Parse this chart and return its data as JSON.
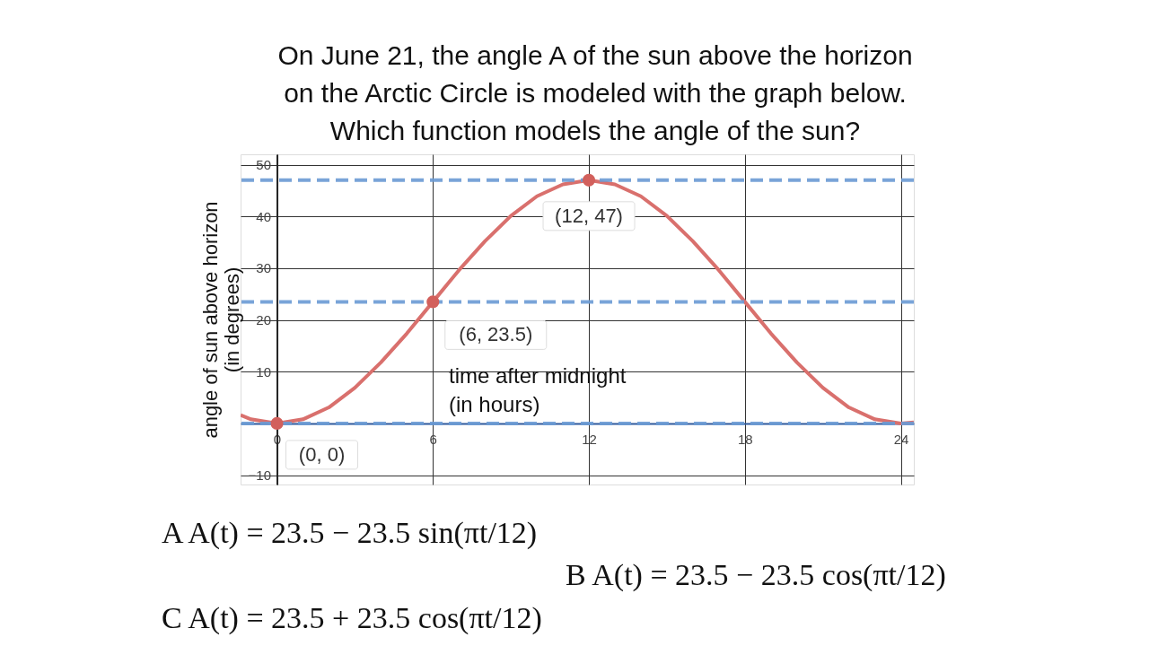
{
  "chart_data": {
    "type": "line",
    "title": "On June 21, the angle A of the sun above the horizon\non the Arctic Circle is modeled with the graph below.\nWhich function models the angle of the sun?",
    "xlabel": "time after midnight\n(in hours)",
    "ylabel": "angle of sun above horizon\n(in degrees)",
    "series": [
      {
        "color": "#d9706d",
        "x": [
          -1.4,
          -1,
          0,
          1,
          2,
          3,
          4,
          5,
          6,
          7,
          8,
          9,
          10,
          11,
          12,
          13,
          14,
          15,
          16,
          17,
          18,
          19,
          20,
          21,
          22,
          23,
          24,
          24.5
        ],
        "values": [
          1.6,
          0.8,
          0,
          0.8,
          3.1,
          6.9,
          11.8,
          17.4,
          23.5,
          29.6,
          35.2,
          40.1,
          43.9,
          46.2,
          47,
          46.2,
          43.9,
          40.1,
          35.2,
          29.6,
          23.5,
          17.4,
          11.8,
          6.9,
          3.1,
          0.8,
          0,
          0.2
        ]
      },
      {
        "type": "scatter",
        "color": "#d2605c",
        "x": [
          0,
          6,
          12
        ],
        "values": [
          0,
          23.5,
          47
        ]
      }
    ],
    "xlim": [
      -1.4,
      24.5
    ],
    "ylim": [
      -11.8,
      52
    ],
    "xticks": [
      0,
      6,
      12,
      18,
      24
    ],
    "yticks": [
      -10,
      10,
      20,
      30,
      40,
      50
    ],
    "grid": true,
    "ref_lines": [
      {
        "axis": "y",
        "value": 47,
        "color": "#6a9ad4",
        "line_style": "dashed"
      },
      {
        "axis": "y",
        "value": 23.5,
        "color": "#6a9ad4",
        "line_style": "dashed"
      },
      {
        "axis": "y",
        "value": 0,
        "color": "#6a9ad4",
        "line_style": "dashed"
      }
    ],
    "annotations": [
      {
        "text": "(0, 0)",
        "x": 0,
        "y": 0
      },
      {
        "text": "(6, 23.5)",
        "x": 6,
        "y": 23.5
      },
      {
        "text": "(12, 47)",
        "x": 12,
        "y": 47
      },
      "A   A(t) = 23.5 − 23.5 sin(πt/12)",
      "B   A(t) = 23.5 − 23.5 cos(πt/12)",
      "C   A(t) = 23.5 + 23.5 cos(πt/12)"
    ]
  }
}
